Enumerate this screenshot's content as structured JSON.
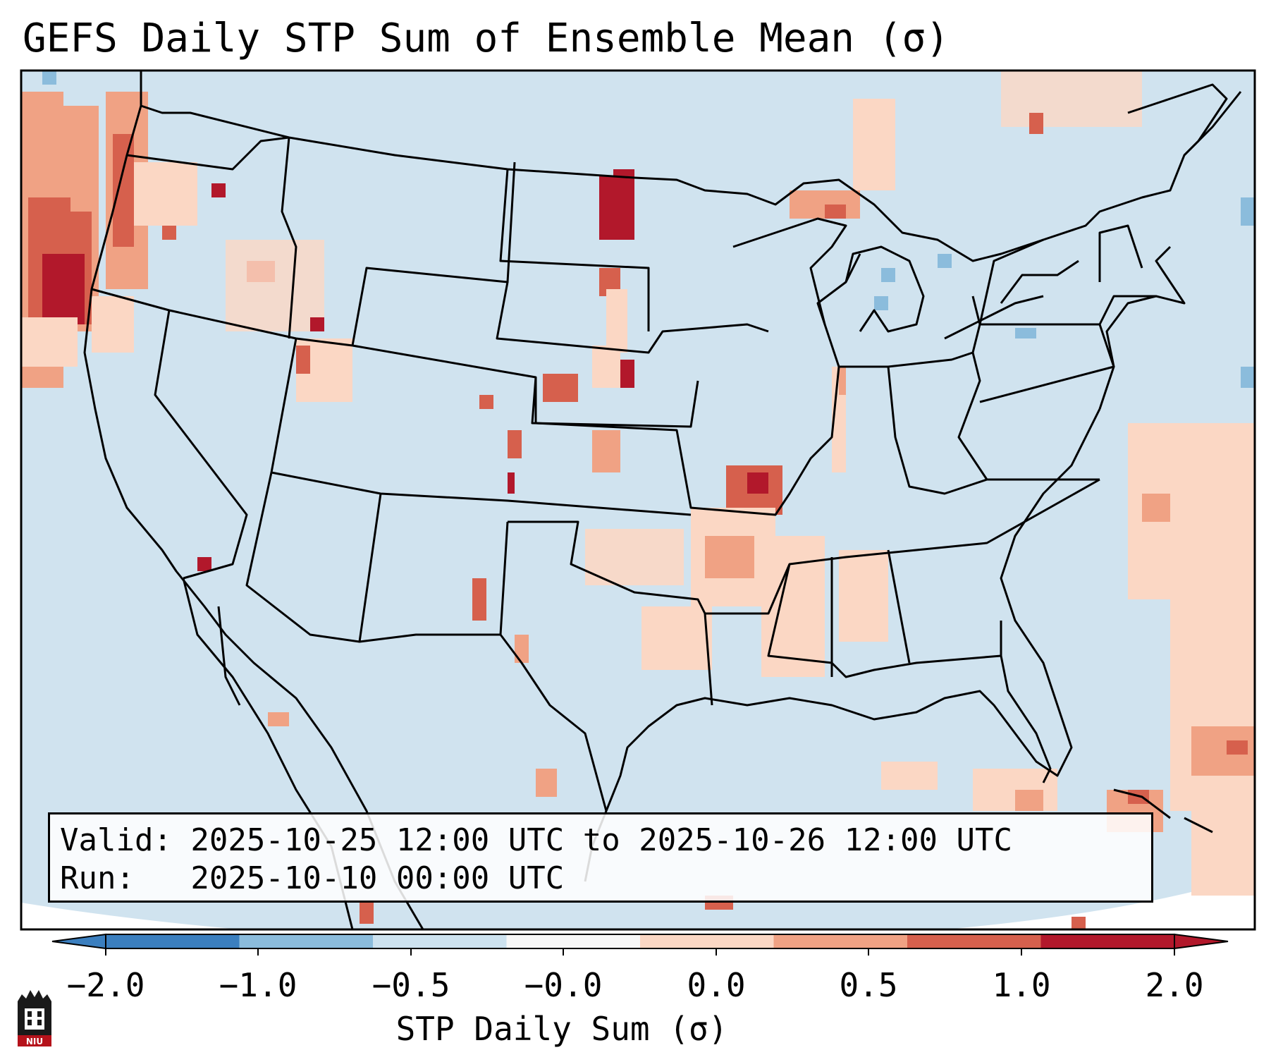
{
  "title": "GEFS Daily STP Sum of Ensemble Mean (σ)",
  "info": {
    "valid_line": "Valid: 2025-10-25 12:00 UTC to 2025-10-26 12:00 UTC",
    "run_line": "Run:   2025-10-10 00:00 UTC"
  },
  "colorbar": {
    "label": "STP Daily Sum (σ)",
    "ticks": [
      "−2.0",
      "−1.0",
      "−0.5",
      "−0.0",
      "0.0",
      "0.5",
      "1.0",
      "2.0"
    ],
    "colors": [
      "#3b7fbf",
      "#8bbcdc",
      "#cde2ef",
      "#f7f7f7",
      "#fbd7c4",
      "#f0a284",
      "#d6604d",
      "#b2182b"
    ],
    "extend": "both"
  },
  "map": {
    "region": "Contiguous United States",
    "background_color": "#d0e3ef",
    "outside_color": "#ffffff"
  },
  "logo": {
    "text": "NIU",
    "color": "#b5121b"
  }
}
